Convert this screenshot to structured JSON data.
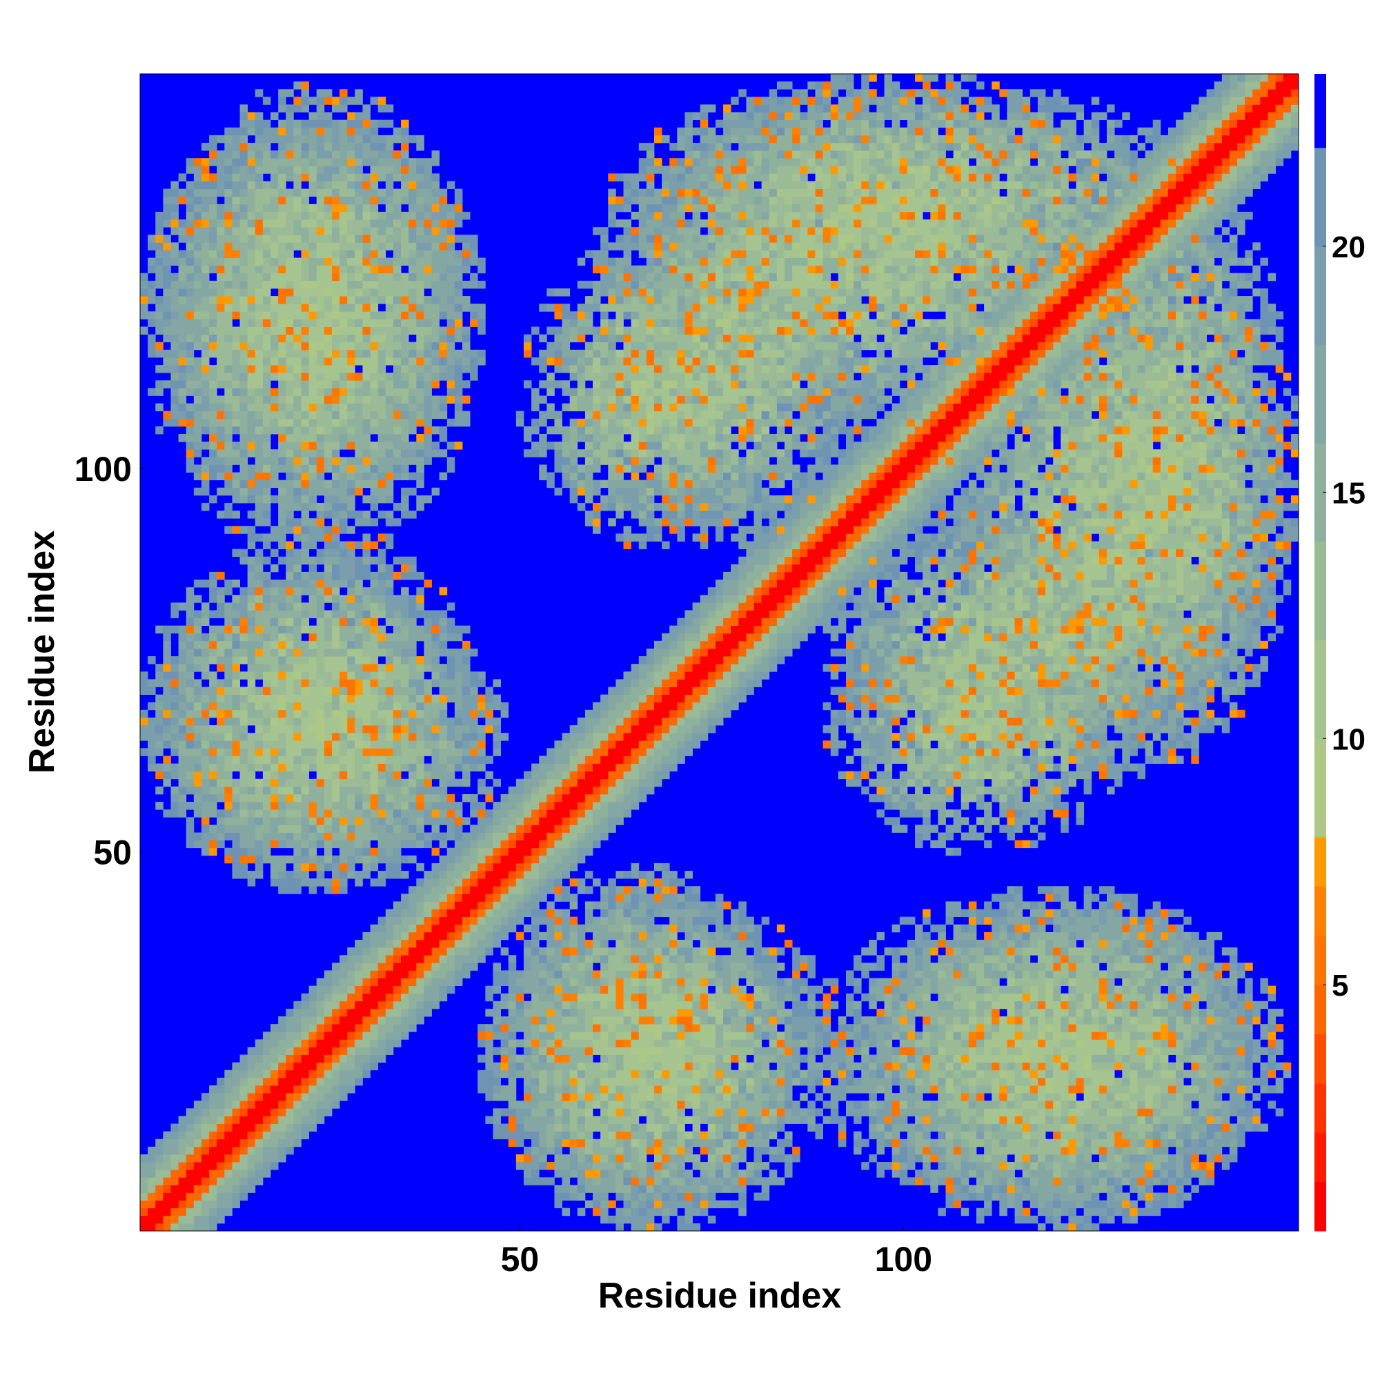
{
  "chart_data": {
    "type": "heatmap",
    "title": "",
    "xlabel": "Residue index",
    "ylabel": "Residue index",
    "n_residues": 151,
    "xlim": [
      1,
      151
    ],
    "ylim": [
      1,
      151
    ],
    "x_ticks": [
      50,
      100
    ],
    "y_ticks": [
      50,
      100
    ],
    "colorbar": {
      "ticks": [
        5,
        10,
        15,
        20
      ],
      "range": [
        0,
        23.5
      ],
      "bins": [
        {
          "min": 0,
          "max": 1,
          "color": "#ff0000"
        },
        {
          "min": 1,
          "max": 2,
          "color": "#ff1a00"
        },
        {
          "min": 2,
          "max": 3,
          "color": "#ff3300"
        },
        {
          "min": 3,
          "max": 4,
          "color": "#ff4d00"
        },
        {
          "min": 4,
          "max": 5,
          "color": "#ff6600"
        },
        {
          "min": 5,
          "max": 6,
          "color": "#ff7300"
        },
        {
          "min": 6,
          "max": 7,
          "color": "#ff8000"
        },
        {
          "min": 7,
          "max": 8,
          "color": "#ff9900"
        },
        {
          "min": 8,
          "max": 10,
          "color": "#adc886"
        },
        {
          "min": 10,
          "max": 12,
          "color": "#a6c490"
        },
        {
          "min": 12,
          "max": 14,
          "color": "#9bbb96"
        },
        {
          "min": 14,
          "max": 16,
          "color": "#8fb09c"
        },
        {
          "min": 16,
          "max": 18,
          "color": "#85a7a3"
        },
        {
          "min": 18,
          "max": 20,
          "color": "#7a9eab"
        },
        {
          "min": 20,
          "max": 22,
          "color": "#6e93b3"
        },
        {
          "min": 22,
          "max": 23.5,
          "color": "#0000ff"
        }
      ]
    },
    "background_color": "#0000ff",
    "description_of_pattern": {
      "diagonal": "contact distance < 4 along main diagonal (red), band width ~8 residues green/orange",
      "off_diagonal_blocks": [
        {
          "x_range": [
            1,
            45
          ],
          "y_range": [
            95,
            148
          ]
        },
        {
          "x_range": [
            1,
            45
          ],
          "y_range": [
            45,
            92
          ]
        },
        {
          "x_range": [
            45,
            85
          ],
          "y_range": [
            1,
            48
          ]
        },
        {
          "x_range": [
            50,
            85
          ],
          "y_range": [
            90,
            130
          ]
        },
        {
          "x_range": [
            62,
            140
          ],
          "y_range": [
            120,
            151
          ]
        },
        {
          "x_range": [
            90,
            140
          ],
          "y_range": [
            60,
            95
          ]
        },
        {
          "x_range": [
            105,
            151
          ],
          "y_range": [
            60,
            130
          ]
        },
        {
          "x_range": [
            88,
            150
          ],
          "y_range": [
            1,
            45
          ]
        }
      ]
    }
  }
}
